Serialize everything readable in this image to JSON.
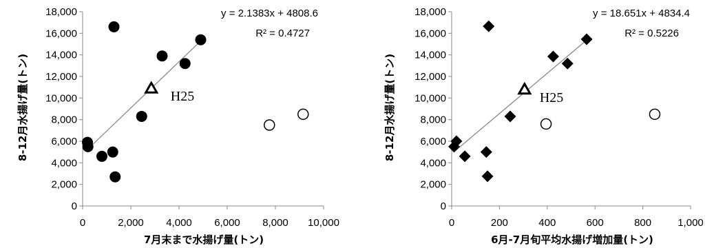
{
  "chart_data": [
    {
      "type": "scatter",
      "xlabel": "7月末まで水揚げ量(トン)",
      "ylabel": "8-12月水揚げ量(トン)",
      "xlim": [
        0,
        10000
      ],
      "ylim": [
        0,
        18000
      ],
      "xticks": [
        "0",
        "2,000",
        "4,000",
        "6,000",
        "8,000",
        "10,000"
      ],
      "yticks": [
        "0",
        "2,000",
        "4,000",
        "6,000",
        "8,000",
        "10,000",
        "12,000",
        "14,000",
        "16,000",
        "18,000"
      ],
      "xtick_values": [
        0,
        2000,
        4000,
        6000,
        8000,
        10000
      ],
      "ytick_values": [
        0,
        2000,
        4000,
        6000,
        8000,
        10000,
        12000,
        14000,
        16000,
        18000
      ],
      "grid": false,
      "trendline": {
        "slope": 2.1383,
        "intercept": 4808.6,
        "x_range": [
          180,
          4900
        ],
        "equation": "y = 2.1383x + 4808.6",
        "r2": "R² = 0.4727"
      },
      "series": [
        {
          "marker": "filled-circle",
          "points": [
            {
              "x": 200,
              "y": 5900
            },
            {
              "x": 220,
              "y": 5500
            },
            {
              "x": 800,
              "y": 4600
            },
            {
              "x": 1250,
              "y": 5000
            },
            {
              "x": 1300,
              "y": 16600
            },
            {
              "x": 1350,
              "y": 2700
            },
            {
              "x": 2450,
              "y": 8300
            },
            {
              "x": 3300,
              "y": 13900
            },
            {
              "x": 4250,
              "y": 13200
            },
            {
              "x": 4900,
              "y": 15400
            }
          ]
        },
        {
          "marker": "open-circle",
          "points": [
            {
              "x": 7750,
              "y": 7500
            },
            {
              "x": 9150,
              "y": 8500
            }
          ]
        },
        {
          "marker": "open-triangle",
          "points": [
            {
              "x": 2850,
              "y": 10900
            }
          ]
        }
      ],
      "annotation": {
        "text": "H25",
        "x": 2850,
        "y": 10900
      }
    },
    {
      "type": "scatter",
      "xlabel": "6月-7月旬平均水揚げ増加量(トン)",
      "ylabel": "8-12月水揚げ量(トン)",
      "xlim": [
        0,
        1000
      ],
      "ylim": [
        0,
        18000
      ],
      "xticks": [
        "0",
        "200",
        "400",
        "600",
        "800",
        "1,000"
      ],
      "yticks": [
        "0",
        "2,000",
        "4,000",
        "6,000",
        "8,000",
        "10,000",
        "12,000",
        "14,000",
        "16,000",
        "18,000"
      ],
      "xtick_values": [
        0,
        200,
        400,
        600,
        800,
        1000
      ],
      "ytick_values": [
        0,
        2000,
        4000,
        6000,
        8000,
        10000,
        12000,
        14000,
        16000,
        18000
      ],
      "grid": false,
      "trendline": {
        "slope": 18.651,
        "intercept": 4834.4,
        "x_range": [
          10,
          570
        ],
        "equation": "y = 18.651x + 4834.4",
        "r2": "R² = 0.5226"
      },
      "series": [
        {
          "marker": "filled-diamond",
          "points": [
            {
              "x": 10,
              "y": 5500
            },
            {
              "x": 20,
              "y": 6000
            },
            {
              "x": 55,
              "y": 4600
            },
            {
              "x": 145,
              "y": 5000
            },
            {
              "x": 150,
              "y": 2750
            },
            {
              "x": 155,
              "y": 16650
            },
            {
              "x": 245,
              "y": 8300
            },
            {
              "x": 425,
              "y": 13850
            },
            {
              "x": 485,
              "y": 13200
            },
            {
              "x": 565,
              "y": 15450
            }
          ]
        },
        {
          "marker": "open-circle",
          "points": [
            {
              "x": 395,
              "y": 7600
            },
            {
              "x": 850,
              "y": 8500
            }
          ]
        },
        {
          "marker": "open-triangle",
          "points": [
            {
              "x": 305,
              "y": 10800
            }
          ]
        }
      ],
      "annotation": {
        "text": "H25",
        "x": 305,
        "y": 10800
      }
    }
  ]
}
